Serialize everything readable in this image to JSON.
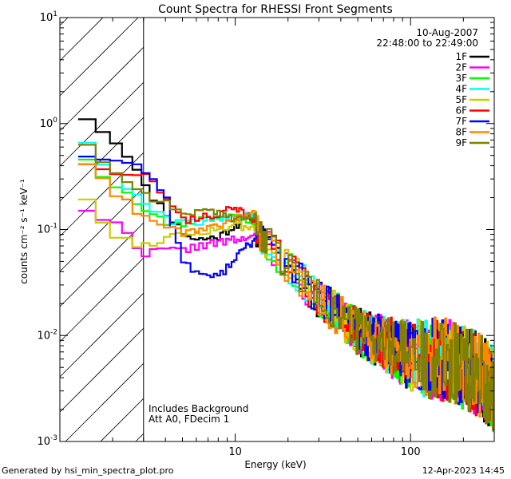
{
  "chart_data": {
    "type": "line",
    "title": "Count Spectra for RHESSI Front Segments",
    "xlabel": "Energy (keV)",
    "ylabel": "counts cm⁻² s⁻¹ keV⁻¹",
    "xscale": "log",
    "yscale": "log",
    "xlim": [
      1,
      300
    ],
    "ylim": [
      0.001,
      10
    ],
    "x_tick_labels": [
      {
        "value": 10,
        "label": "10"
      },
      {
        "value": 100,
        "label": "100"
      }
    ],
    "y_tick_labels": [
      {
        "value": 0.001,
        "base": "10",
        "exp": "-3"
      },
      {
        "value": 0.01,
        "base": "10",
        "exp": "-2"
      },
      {
        "value": 0.1,
        "base": "10",
        "exp": "-1"
      },
      {
        "value": 1,
        "base": "10",
        "exp": "0"
      },
      {
        "value": 10,
        "base": "10",
        "exp": "1"
      }
    ],
    "date_label": "10-Aug-2007",
    "time_range_label": "22:48:00 to 22:49:00",
    "annotation_line1": "Includes Background",
    "annotation_line2": "Att A0, FDecim 1",
    "hatched_region_xmax": 3,
    "legend_position": "top-right",
    "series": [
      {
        "name": "1F",
        "color": "#000000",
        "seed": 11,
        "lowE": [
          [
            1.27,
            1.35
          ],
          [
            1.6,
            1.0
          ],
          [
            2.0,
            0.72
          ],
          [
            2.5,
            0.5
          ],
          [
            3.0,
            0.26
          ],
          [
            4.0,
            0.15
          ],
          [
            5.0,
            0.095
          ],
          [
            6.0,
            0.08
          ],
          [
            8.0,
            0.085
          ],
          [
            10.0,
            0.11
          ],
          [
            13.0,
            0.13
          ]
        ]
      },
      {
        "name": "2F",
        "color": "#ff00ff",
        "seed": 22,
        "lowE": [
          [
            1.27,
            0.18
          ],
          [
            1.6,
            0.14
          ],
          [
            2.0,
            0.115
          ],
          [
            2.5,
            0.09
          ],
          [
            3.0,
            0.06
          ],
          [
            4.0,
            0.064
          ],
          [
            5.0,
            0.063
          ],
          [
            6.0,
            0.07
          ],
          [
            8.0,
            0.075
          ],
          [
            10.0,
            0.08
          ],
          [
            13.0,
            0.085
          ]
        ]
      },
      {
        "name": "3F",
        "color": "#00ff00",
        "seed": 33,
        "lowE": [
          [
            1.27,
            0.62
          ],
          [
            1.6,
            0.38
          ],
          [
            2.0,
            0.27
          ],
          [
            2.5,
            0.2
          ],
          [
            3.0,
            0.16
          ],
          [
            4.0,
            0.115
          ],
          [
            5.0,
            0.11
          ],
          [
            6.0,
            0.12
          ],
          [
            8.0,
            0.13
          ],
          [
            10.0,
            0.13
          ],
          [
            13.0,
            0.12
          ]
        ]
      },
      {
        "name": "4F",
        "color": "#00ffff",
        "seed": 44,
        "lowE": [
          [
            1.27,
            0.95
          ],
          [
            1.6,
            0.52
          ],
          [
            2.0,
            0.33
          ],
          [
            2.5,
            0.24
          ],
          [
            3.0,
            0.18
          ],
          [
            4.0,
            0.125
          ],
          [
            5.0,
            0.115
          ],
          [
            6.0,
            0.12
          ],
          [
            8.0,
            0.125
          ],
          [
            10.0,
            0.13
          ],
          [
            13.0,
            0.14
          ]
        ]
      },
      {
        "name": "5F",
        "color": "#cccc00",
        "seed": 55,
        "lowE": [
          [
            1.27,
            0.26
          ],
          [
            1.6,
            0.16
          ],
          [
            2.0,
            0.085
          ],
          [
            2.5,
            0.08
          ],
          [
            3.0,
            0.07
          ],
          [
            4.0,
            0.085
          ],
          [
            5.0,
            0.09
          ],
          [
            6.0,
            0.095
          ],
          [
            8.0,
            0.1
          ],
          [
            10.0,
            0.11
          ],
          [
            13.0,
            0.1
          ]
        ]
      },
      {
        "name": "6F",
        "color": "#ff0000",
        "seed": 66,
        "lowE": [
          [
            1.27,
            0.47
          ],
          [
            1.6,
            0.4
          ],
          [
            2.0,
            0.37
          ],
          [
            2.5,
            0.35
          ],
          [
            3.0,
            0.32
          ],
          [
            4.0,
            0.22
          ],
          [
            5.0,
            0.12
          ],
          [
            6.0,
            0.13
          ],
          [
            8.0,
            0.14
          ],
          [
            10.0,
            0.16
          ],
          [
            13.0,
            0.12
          ]
        ]
      },
      {
        "name": "7F",
        "color": "#0000ff",
        "seed": 77,
        "lowE": [
          [
            1.27,
            0.52
          ],
          [
            1.6,
            0.5
          ],
          [
            2.0,
            0.45
          ],
          [
            2.5,
            0.42
          ],
          [
            3.0,
            0.38
          ],
          [
            4.0,
            0.22
          ],
          [
            5.0,
            0.05
          ],
          [
            6.0,
            0.04
          ],
          [
            8.0,
            0.035
          ],
          [
            10.0,
            0.055
          ],
          [
            13.0,
            0.08
          ]
        ]
      },
      {
        "name": "8F",
        "color": "#ff8800",
        "seed": 88,
        "lowE": [
          [
            1.27,
            0.47
          ],
          [
            1.6,
            0.4
          ],
          [
            2.0,
            0.24
          ],
          [
            2.5,
            0.17
          ],
          [
            3.0,
            0.14
          ],
          [
            4.0,
            0.11
          ],
          [
            5.0,
            0.095
          ],
          [
            6.0,
            0.1
          ],
          [
            8.0,
            0.11
          ],
          [
            10.0,
            0.13
          ],
          [
            13.0,
            0.14
          ]
        ]
      },
      {
        "name": "9F",
        "color": "#808000",
        "seed": 99,
        "lowE": [
          [
            1.27,
            0.8
          ],
          [
            1.6,
            0.55
          ],
          [
            2.0,
            0.35
          ],
          [
            2.5,
            0.28
          ],
          [
            3.0,
            0.22
          ],
          [
            4.0,
            0.18
          ],
          [
            5.0,
            0.14
          ],
          [
            6.0,
            0.15
          ],
          [
            8.0,
            0.14
          ],
          [
            10.0,
            0.13
          ],
          [
            13.0,
            0.13
          ]
        ]
      }
    ],
    "high_energy_trend": [
      [
        13.0,
        0.1
      ],
      [
        20.0,
        0.045
      ],
      [
        30.0,
        0.022
      ],
      [
        50.0,
        0.011
      ],
      [
        80.0,
        0.0075
      ],
      [
        100.0,
        0.0065
      ],
      [
        150.0,
        0.006
      ],
      [
        200.0,
        0.005
      ],
      [
        250.0,
        0.0042
      ],
      [
        300.0,
        0.003
      ]
    ]
  },
  "footer": {
    "left": "Generated by hsi_min_spectra_plot.pro",
    "right": "12-Apr-2023 14:45"
  }
}
